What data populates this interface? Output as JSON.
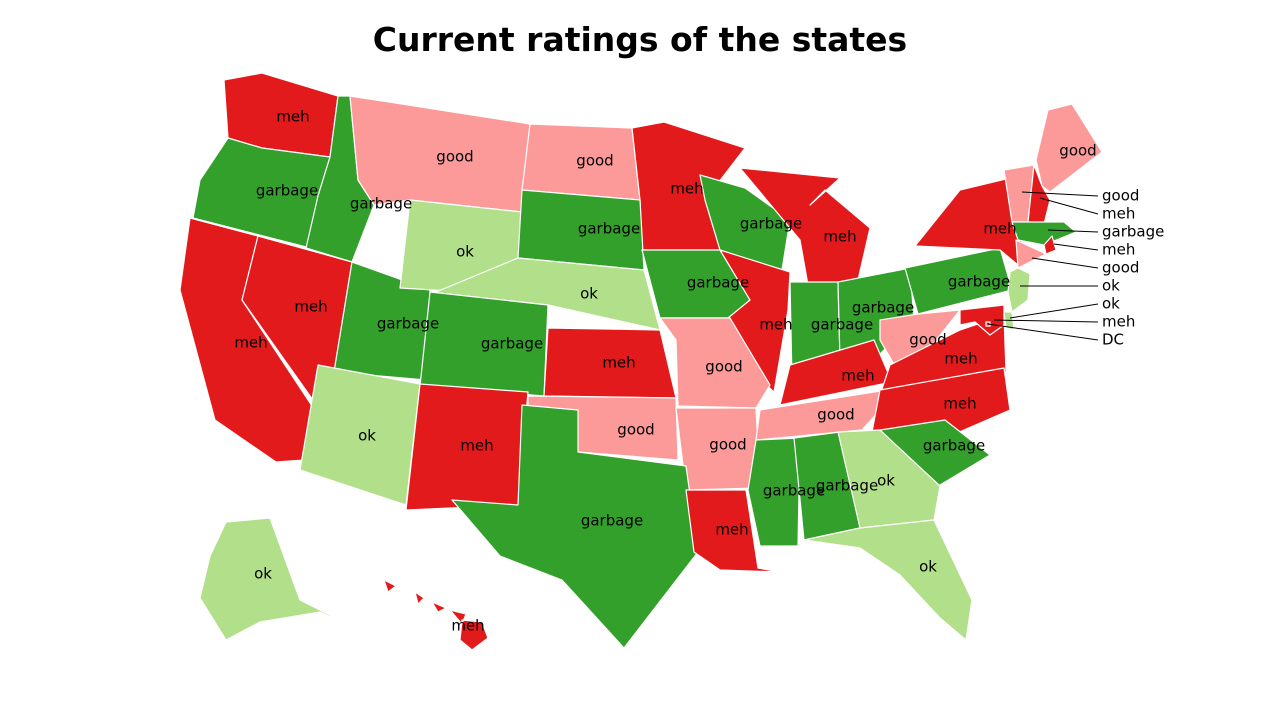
{
  "title": "Current ratings of the states",
  "legend_colors": {
    "good": "#fb9a99",
    "meh": "#e31a1c",
    "garbage": "#33a02c",
    "ok": "#b2df8a"
  },
  "states": [
    {
      "id": "WA",
      "rating": "meh"
    },
    {
      "id": "OR",
      "rating": "garbage"
    },
    {
      "id": "ID",
      "rating": "garbage"
    },
    {
      "id": "MT",
      "rating": "good"
    },
    {
      "id": "ND",
      "rating": "good"
    },
    {
      "id": "MN",
      "rating": "meh"
    },
    {
      "id": "WI",
      "rating": "garbage"
    },
    {
      "id": "MI",
      "rating": "meh"
    },
    {
      "id": "CA",
      "rating": "meh"
    },
    {
      "id": "NV",
      "rating": "meh"
    },
    {
      "id": "UT",
      "rating": "garbage"
    },
    {
      "id": "WY",
      "rating": "ok"
    },
    {
      "id": "SD",
      "rating": "garbage"
    },
    {
      "id": "NE",
      "rating": "ok"
    },
    {
      "id": "IA",
      "rating": "garbage"
    },
    {
      "id": "IL",
      "rating": "meh"
    },
    {
      "id": "IN",
      "rating": "garbage"
    },
    {
      "id": "OH",
      "rating": "garbage"
    },
    {
      "id": "PA",
      "rating": "garbage"
    },
    {
      "id": "NY",
      "rating": "meh"
    },
    {
      "id": "CO",
      "rating": "garbage"
    },
    {
      "id": "KS",
      "rating": "meh"
    },
    {
      "id": "MO",
      "rating": "good"
    },
    {
      "id": "KY",
      "rating": "meh"
    },
    {
      "id": "WV",
      "rating": "good"
    },
    {
      "id": "VA",
      "rating": "meh"
    },
    {
      "id": "AZ",
      "rating": "ok"
    },
    {
      "id": "NM",
      "rating": "meh"
    },
    {
      "id": "OK",
      "rating": "good"
    },
    {
      "id": "AR",
      "rating": "good"
    },
    {
      "id": "TN",
      "rating": "good"
    },
    {
      "id": "NC",
      "rating": "meh"
    },
    {
      "id": "SC",
      "rating": "garbage"
    },
    {
      "id": "TX",
      "rating": "garbage"
    },
    {
      "id": "LA",
      "rating": "meh"
    },
    {
      "id": "MS",
      "rating": "garbage"
    },
    {
      "id": "AL",
      "rating": "garbage"
    },
    {
      "id": "GA",
      "rating": "ok"
    },
    {
      "id": "FL",
      "rating": "ok"
    },
    {
      "id": "AK",
      "rating": "ok"
    },
    {
      "id": "HI",
      "rating": "meh"
    },
    {
      "id": "ME",
      "rating": "good"
    },
    {
      "id": "VT",
      "rating": "good"
    },
    {
      "id": "NH",
      "rating": "meh"
    },
    {
      "id": "MA",
      "rating": "garbage"
    },
    {
      "id": "RI",
      "rating": "meh"
    },
    {
      "id": "CT",
      "rating": "good"
    },
    {
      "id": "NJ",
      "rating": "ok"
    },
    {
      "id": "DE",
      "rating": "ok"
    },
    {
      "id": "MD",
      "rating": "meh"
    },
    {
      "id": "DC",
      "rating": "DC"
    }
  ]
}
